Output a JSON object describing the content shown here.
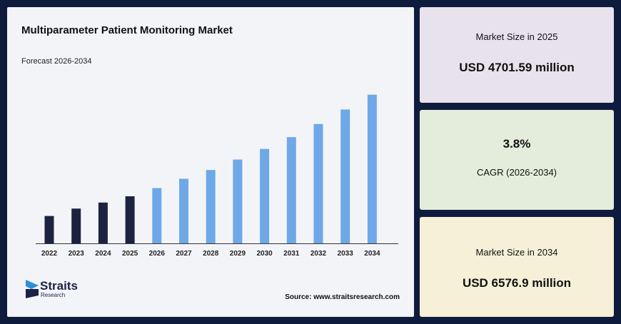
{
  "chart_data": {
    "type": "bar",
    "title": "Multiparameter Patient Monitoring Market",
    "subtitle": "Forecast 2026-2034",
    "categories": [
      "2022",
      "2023",
      "2024",
      "2025",
      "2026",
      "2027",
      "2028",
      "2029",
      "2030",
      "2031",
      "2032",
      "2033",
      "2034"
    ],
    "values": [
      1.0,
      1.27,
      1.49,
      1.72,
      2.02,
      2.36,
      2.68,
      3.06,
      3.45,
      3.88,
      4.36,
      4.89,
      5.43
    ],
    "ylim": [
      0,
      5.5
    ],
    "grid": false,
    "legend": "none",
    "colors": {
      "historical": "#1b2340",
      "forecast": "#6fa8e6"
    },
    "historical_count": 4
  },
  "source": "Source: www.straitsresearch.com",
  "logo": {
    "name": "Straits",
    "tagline": "Research"
  },
  "cards": [
    {
      "label": "Market Size in 2025",
      "value": "USD 4701.59 million"
    },
    {
      "value": "3.8%",
      "label": "CAGR (2026-2034)"
    },
    {
      "label": "Market Size in 2034",
      "value": "USD 6576.9 million"
    }
  ]
}
